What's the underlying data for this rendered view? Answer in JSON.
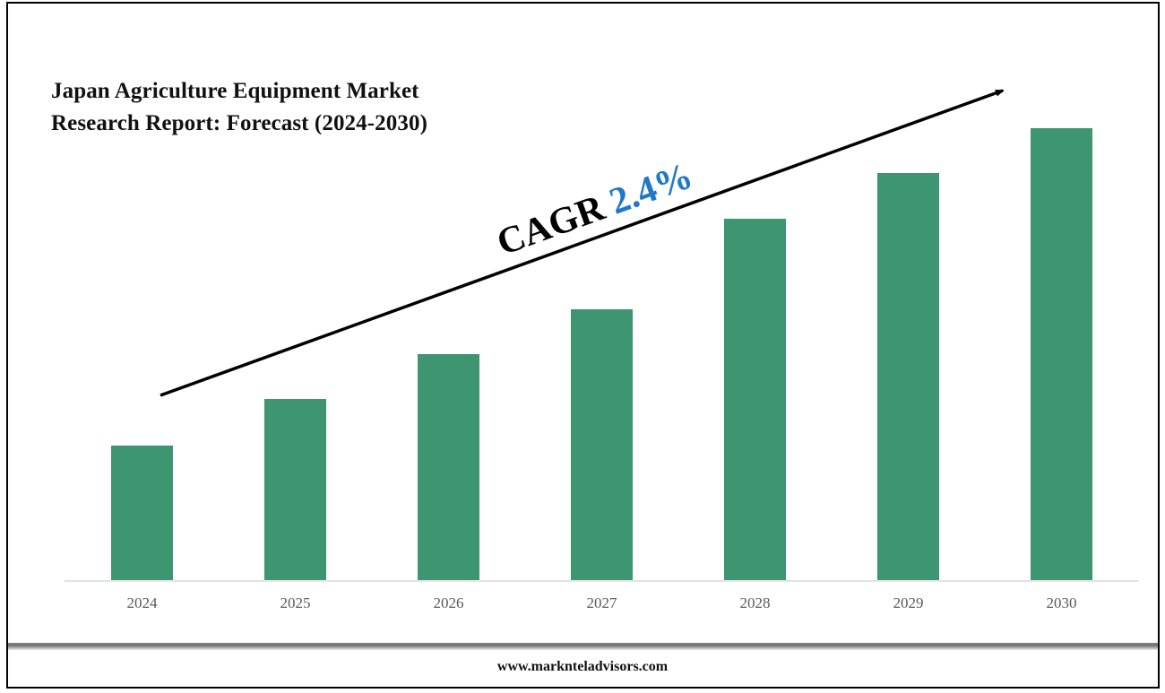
{
  "title_line1": "Japan Agriculture Equipment Market",
  "title_line2": "Research Report: Forecast (2024-2030)",
  "cagr_label": "CAGR",
  "cagr_value": "2.4%",
  "footer": "www.marknteladvisors.com",
  "colors": {
    "bar": "#3d9571",
    "cagr_value": "#1f78c8",
    "axis": "#d9d9d9",
    "arrow": "#000000"
  },
  "chart_data": {
    "type": "bar",
    "title": "Japan Agriculture Equipment Market Research Report: Forecast (2024-2030)",
    "categories": [
      "2024",
      "2025",
      "2026",
      "2027",
      "2028",
      "2029",
      "2030"
    ],
    "values": [
      150,
      202,
      252,
      302,
      403,
      454,
      504
    ],
    "values_note": "relative bar heights (no y-axis shown)",
    "xlabel": "",
    "ylabel": "",
    "grid": false,
    "legend": null,
    "annotations": [
      "CAGR 2.4%",
      "upward trend arrow"
    ]
  }
}
